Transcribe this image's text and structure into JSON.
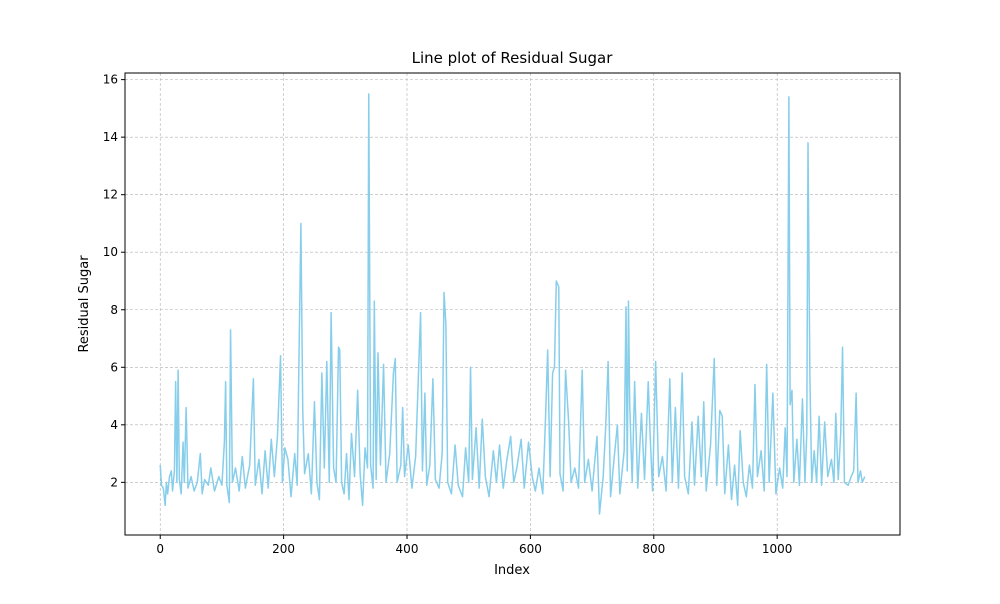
{
  "chart_data": {
    "type": "line",
    "title": "Line plot of Residual Sugar",
    "x_label": "Index",
    "y_label": "Residual Sugar",
    "x": [
      0,
      2,
      5,
      8,
      10,
      12,
      15,
      18,
      20,
      23,
      25,
      27,
      29,
      31,
      34,
      37,
      39,
      42,
      45,
      50,
      55,
      60,
      65,
      68,
      72,
      78,
      82,
      88,
      95,
      100,
      104,
      106,
      108,
      112,
      114,
      117,
      122,
      128,
      133,
      138,
      145,
      151,
      154,
      160,
      165,
      170,
      175,
      180,
      185,
      190,
      195,
      198,
      202,
      207,
      212,
      218,
      222,
      228,
      231,
      234,
      240,
      245,
      250,
      254,
      258,
      262,
      266,
      270,
      274,
      277,
      281,
      285,
      289,
      291,
      294,
      298,
      302,
      306,
      310,
      315,
      320,
      324,
      328,
      332,
      336,
      338,
      341,
      345,
      347,
      350,
      353,
      357,
      362,
      366,
      372,
      378,
      381,
      384,
      390,
      393,
      396,
      402,
      408,
      414,
      422,
      425,
      429,
      432,
      437,
      442,
      446,
      452,
      457,
      460,
      463,
      466,
      472,
      478,
      483,
      490,
      495,
      500,
      503,
      506,
      512,
      517,
      522,
      527,
      533,
      540,
      545,
      550,
      556,
      562,
      568,
      573,
      578,
      585,
      590,
      597,
      603,
      608,
      614,
      620,
      624,
      628,
      632,
      636,
      639,
      642,
      644,
      646,
      648,
      653,
      657,
      662,
      666,
      672,
      678,
      684,
      688,
      694,
      700,
      708,
      712,
      718,
      722,
      726,
      730,
      736,
      741,
      745,
      752,
      755,
      757,
      759,
      761,
      765,
      769,
      774,
      780,
      785,
      791,
      794,
      798,
      803,
      808,
      814,
      820,
      826,
      830,
      835,
      840,
      846,
      850,
      856,
      862,
      866,
      872,
      877,
      881,
      885,
      892,
      898,
      902,
      907,
      911,
      915,
      921,
      926,
      931,
      936,
      940,
      945,
      950,
      955,
      960,
      964,
      968,
      974,
      979,
      983,
      987,
      993,
      998,
      1004,
      1009,
      1013,
      1016,
      1019,
      1021,
      1024,
      1027,
      1032,
      1036,
      1041,
      1045,
      1048,
      1050,
      1053,
      1056,
      1060,
      1064,
      1068,
      1072,
      1077,
      1082,
      1088,
      1092,
      1095,
      1099,
      1103,
      1106,
      1109,
      1115,
      1120,
      1124,
      1128,
      1131,
      1135,
      1138,
      1142
    ],
    "series": [
      {
        "name": "Residual Sugar",
        "color": "#87ceeb",
        "values": [
          2.6,
          1.9,
          1.8,
          1.2,
          2.0,
          1.6,
          2.2,
          2.4,
          1.7,
          2.4,
          5.5,
          2.0,
          5.9,
          2.1,
          1.6,
          3.4,
          2.0,
          4.6,
          1.8,
          2.2,
          1.7,
          2.0,
          3.0,
          1.6,
          2.1,
          1.9,
          2.5,
          1.7,
          2.2,
          1.9,
          3.4,
          5.5,
          1.9,
          1.3,
          7.3,
          2.0,
          2.5,
          1.7,
          2.9,
          1.8,
          2.6,
          5.6,
          1.9,
          2.8,
          1.6,
          3.1,
          1.8,
          3.5,
          2.2,
          3.6,
          6.4,
          2.0,
          3.2,
          2.8,
          1.5,
          3.0,
          1.9,
          11.0,
          4.5,
          2.3,
          3.0,
          1.6,
          4.8,
          2.0,
          1.4,
          5.8,
          2.5,
          6.2,
          2.0,
          7.9,
          2.5,
          2.0,
          6.7,
          6.6,
          2.0,
          1.6,
          3.0,
          1.4,
          3.7,
          2.2,
          5.2,
          2.3,
          1.2,
          3.2,
          2.5,
          15.5,
          2.6,
          1.8,
          8.3,
          2.1,
          6.5,
          2.6,
          6.1,
          2.0,
          3.0,
          5.8,
          6.3,
          2.0,
          2.6,
          4.6,
          2.2,
          3.3,
          1.8,
          2.9,
          7.9,
          2.4,
          5.1,
          1.9,
          2.6,
          5.6,
          2.1,
          1.8,
          3.0,
          8.6,
          7.5,
          2.0,
          1.6,
          3.3,
          1.9,
          1.5,
          3.2,
          2.0,
          6.0,
          2.1,
          3.9,
          1.8,
          4.2,
          2.2,
          1.5,
          3.1,
          2.0,
          3.3,
          1.8,
          2.8,
          3.6,
          2.0,
          2.5,
          3.5,
          1.8,
          3.4,
          2.2,
          1.7,
          2.5,
          1.6,
          3.9,
          6.6,
          2.2,
          5.8,
          6.0,
          9.0,
          8.9,
          8.8,
          2.3,
          1.7,
          5.9,
          4.1,
          2.0,
          2.5,
          1.8,
          5.9,
          2.0,
          2.8,
          1.7,
          3.6,
          0.9,
          2.2,
          3.9,
          6.2,
          1.5,
          2.9,
          4.0,
          1.6,
          3.1,
          8.1,
          2.4,
          8.3,
          4.7,
          2.0,
          5.5,
          1.8,
          4.4,
          2.1,
          5.5,
          3.7,
          1.7,
          6.2,
          2.2,
          2.9,
          1.7,
          5.6,
          2.0,
          4.6,
          1.8,
          5.8,
          2.2,
          1.6,
          4.1,
          1.9,
          4.3,
          2.2,
          4.8,
          1.7,
          3.3,
          6.3,
          1.9,
          4.5,
          4.3,
          1.6,
          3.3,
          1.4,
          2.6,
          1.2,
          3.8,
          2.0,
          1.5,
          2.6,
          1.8,
          5.4,
          2.2,
          3.1,
          1.7,
          6.1,
          2.0,
          5.1,
          1.6,
          2.5,
          1.8,
          3.9,
          2.2,
          15.4,
          4.7,
          5.2,
          2.0,
          3.5,
          1.9,
          4.9,
          2.0,
          3.7,
          13.8,
          5.7,
          2.0,
          3.1,
          2.0,
          4.3,
          1.9,
          4.1,
          2.2,
          2.8,
          2.0,
          4.4,
          2.1,
          3.7,
          6.7,
          2.0,
          1.9,
          2.2,
          2.4,
          5.1,
          2.0,
          2.4,
          2.0,
          2.2
        ]
      }
    ],
    "xlim": [
      -57.1,
      1199.1
    ],
    "ylim": [
      0.17,
      16.23
    ],
    "xticks": [
      0,
      200,
      400,
      600,
      800,
      1000
    ],
    "yticks": [
      2,
      4,
      6,
      8,
      10,
      12,
      14,
      16
    ],
    "grid": true
  }
}
